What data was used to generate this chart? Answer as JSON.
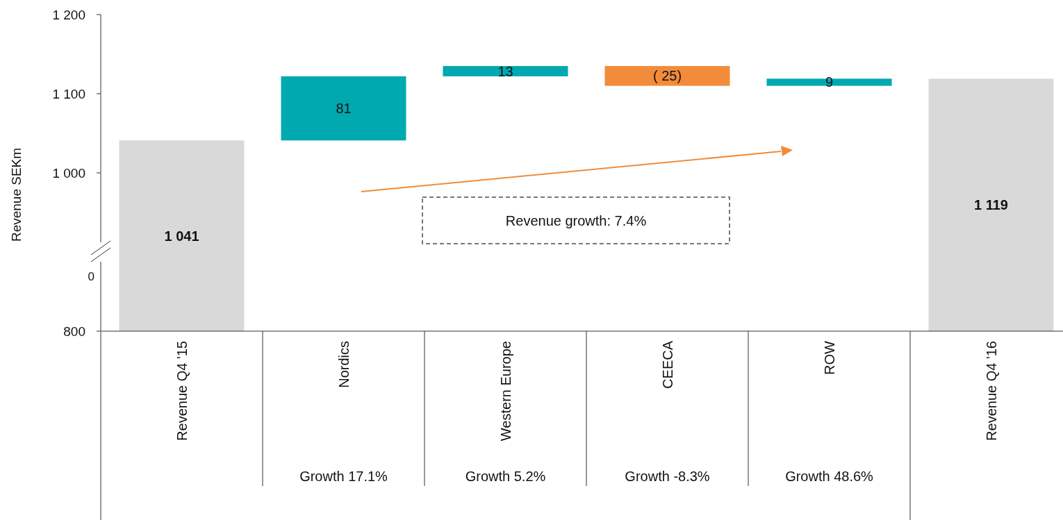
{
  "chart_data": {
    "type": "bar",
    "ylabel": "Revenue SEKm",
    "categories": [
      "Revenue Q4 '15",
      "Nordics",
      "Western Europe",
      "CEECA",
      "ROW",
      "Revenue Q4 '16"
    ],
    "base": [
      800,
      1041,
      1122,
      1135,
      1110,
      800
    ],
    "values": [
      241,
      81,
      13,
      -25,
      9,
      319
    ],
    "colors": [
      "#d9d9d9",
      "#00a9b0",
      "#00a9b0",
      "#f28c3a",
      "#00a9b0",
      "#d9d9d9"
    ],
    "value_labels": [
      "1 041",
      "81",
      "13",
      "( 25)",
      "9",
      "1 119"
    ],
    "ylim": [
      800,
      1200
    ],
    "yticks": [
      800,
      {
        "value": 1000,
        "label": "1 000"
      },
      {
        "value": 1100,
        "label": "1 100"
      },
      {
        "value": 1200,
        "label": "1 200"
      }
    ],
    "grid": false,
    "annotations": [
      "Revenue growth: 7.4%",
      "Growth 17.1%",
      "Growth 5.2%",
      "Growth -8.3%",
      "Growth 48.6%",
      "0"
    ]
  }
}
